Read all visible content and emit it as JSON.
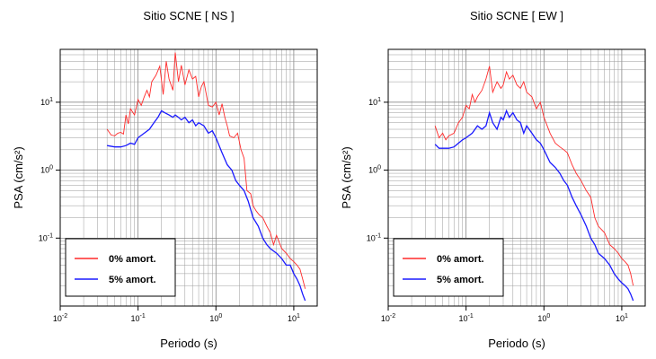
{
  "chart_data": [
    {
      "type": "line",
      "title": "Sitio SCNE [ NS ]",
      "xlabel": "Periodo (s)",
      "ylabel": "PSA (cm/s²)",
      "xscale": "log",
      "yscale": "log",
      "xlim": [
        0.01,
        20
      ],
      "ylim": [
        0.01,
        60
      ],
      "grid": true,
      "legend_position": "bottom-left",
      "x_tick_labels": [
        "10-2",
        "10-1",
        "100",
        "101"
      ],
      "y_tick_labels": [
        "10-1",
        "100",
        "101"
      ],
      "series": [
        {
          "name": "0% amort.",
          "color": "#ff2a2a",
          "x": [
            0.04,
            0.045,
            0.05,
            0.055,
            0.06,
            0.065,
            0.07,
            0.075,
            0.08,
            0.09,
            0.1,
            0.11,
            0.12,
            0.13,
            0.14,
            0.15,
            0.17,
            0.19,
            0.21,
            0.23,
            0.25,
            0.28,
            0.3,
            0.33,
            0.36,
            0.4,
            0.45,
            0.5,
            0.55,
            0.6,
            0.65,
            0.7,
            0.8,
            0.9,
            1.0,
            1.1,
            1.2,
            1.3,
            1.4,
            1.5,
            1.7,
            1.9,
            2.1,
            2.3,
            2.5,
            2.8,
            3.0,
            3.3,
            3.6,
            4.0,
            4.5,
            5.0,
            5.5,
            6.0,
            7.0,
            8.0,
            9.0,
            10,
            11,
            12,
            13,
            14
          ],
          "y": [
            4.0,
            3.3,
            3.2,
            3.5,
            3.6,
            3.4,
            6.5,
            4.8,
            8.0,
            6.5,
            11,
            9.0,
            12,
            15,
            12,
            20,
            25,
            34,
            13,
            40,
            22,
            15,
            54,
            20,
            35,
            18,
            30,
            22,
            24,
            12,
            17,
            20,
            9.0,
            8.5,
            10,
            6.5,
            9.5,
            6.0,
            4.5,
            3.2,
            3.0,
            3.5,
            2.0,
            1.5,
            0.5,
            0.45,
            0.3,
            0.25,
            0.22,
            0.2,
            0.15,
            0.12,
            0.08,
            0.11,
            0.07,
            0.06,
            0.05,
            0.045,
            0.04,
            0.035,
            0.025,
            0.018
          ]
        },
        {
          "name": "5% amort.",
          "color": "#1a1aff",
          "x": [
            0.04,
            0.05,
            0.06,
            0.07,
            0.08,
            0.09,
            0.1,
            0.12,
            0.14,
            0.16,
            0.18,
            0.2,
            0.22,
            0.25,
            0.28,
            0.3,
            0.33,
            0.36,
            0.4,
            0.45,
            0.5,
            0.55,
            0.6,
            0.7,
            0.8,
            0.9,
            1.0,
            1.2,
            1.4,
            1.6,
            1.8,
            2.0,
            2.3,
            2.6,
            3.0,
            3.5,
            4.0,
            4.5,
            5.0,
            6.0,
            7.0,
            8.0,
            9.0,
            10,
            11,
            12,
            13,
            14
          ],
          "y": [
            2.3,
            2.2,
            2.2,
            2.3,
            2.5,
            2.4,
            3.0,
            3.5,
            4.0,
            5.0,
            6.0,
            7.5,
            7.0,
            6.5,
            6.0,
            6.5,
            6.0,
            5.5,
            6.0,
            5.0,
            5.5,
            4.5,
            5.0,
            4.5,
            3.5,
            3.8,
            3.0,
            1.8,
            1.2,
            1.0,
            0.7,
            0.6,
            0.5,
            0.35,
            0.2,
            0.15,
            0.1,
            0.08,
            0.07,
            0.06,
            0.05,
            0.04,
            0.04,
            0.03,
            0.025,
            0.02,
            0.015,
            0.012
          ]
        }
      ]
    },
    {
      "type": "line",
      "title": "Sitio SCNE [ EW ]",
      "xlabel": "Periodo (s)",
      "ylabel": "PSA (cm/s²)",
      "xscale": "log",
      "yscale": "log",
      "xlim": [
        0.01,
        20
      ],
      "ylim": [
        0.01,
        60
      ],
      "grid": true,
      "legend_position": "bottom-left",
      "x_tick_labels": [
        "10-2",
        "10-1",
        "100",
        "101"
      ],
      "y_tick_labels": [
        "10-1",
        "100",
        "101"
      ],
      "series": [
        {
          "name": "0% amort.",
          "color": "#ff2a2a",
          "x": [
            0.04,
            0.045,
            0.05,
            0.055,
            0.06,
            0.07,
            0.08,
            0.09,
            0.1,
            0.11,
            0.12,
            0.13,
            0.14,
            0.16,
            0.18,
            0.2,
            0.22,
            0.25,
            0.28,
            0.3,
            0.33,
            0.36,
            0.4,
            0.45,
            0.5,
            0.55,
            0.6,
            0.7,
            0.8,
            0.9,
            1.0,
            1.2,
            1.4,
            1.6,
            1.8,
            2.0,
            2.3,
            2.6,
            3.0,
            3.5,
            4.0,
            4.5,
            5.0,
            6.0,
            7.0,
            8.0,
            9.0,
            10,
            11,
            12,
            13,
            14
          ],
          "y": [
            4.5,
            3.0,
            3.5,
            2.8,
            3.2,
            3.5,
            5.0,
            6.0,
            9.0,
            8.0,
            13,
            10,
            12,
            15,
            22,
            34,
            14,
            20,
            16,
            18,
            28,
            22,
            25,
            18,
            16,
            20,
            14,
            12,
            8.0,
            10,
            6.0,
            3.5,
            2.5,
            2.2,
            2.0,
            1.8,
            1.2,
            0.9,
            0.7,
            0.5,
            0.4,
            0.2,
            0.15,
            0.12,
            0.08,
            0.07,
            0.06,
            0.05,
            0.045,
            0.04,
            0.03,
            0.02
          ]
        },
        {
          "name": "5% amort.",
          "color": "#1a1aff",
          "x": [
            0.04,
            0.045,
            0.05,
            0.06,
            0.07,
            0.08,
            0.09,
            0.1,
            0.12,
            0.14,
            0.16,
            0.18,
            0.2,
            0.22,
            0.25,
            0.28,
            0.3,
            0.33,
            0.36,
            0.4,
            0.45,
            0.5,
            0.55,
            0.6,
            0.7,
            0.8,
            0.9,
            1.0,
            1.2,
            1.4,
            1.6,
            1.8,
            2.0,
            2.3,
            2.6,
            3.0,
            3.5,
            4.0,
            4.5,
            5.0,
            6.0,
            7.0,
            8.0,
            9.0,
            10,
            11,
            12,
            13,
            14
          ],
          "y": [
            2.4,
            2.1,
            2.1,
            2.1,
            2.2,
            2.5,
            2.8,
            3.0,
            3.5,
            4.5,
            4.0,
            4.5,
            7.0,
            5.0,
            4.0,
            6.0,
            5.5,
            7.5,
            6.0,
            7.0,
            5.5,
            5.0,
            3.5,
            4.5,
            3.5,
            2.8,
            2.5,
            2.0,
            1.3,
            1.1,
            0.9,
            0.7,
            0.6,
            0.4,
            0.3,
            0.22,
            0.15,
            0.1,
            0.08,
            0.06,
            0.05,
            0.04,
            0.03,
            0.025,
            0.022,
            0.02,
            0.018,
            0.015,
            0.012
          ]
        }
      ]
    }
  ]
}
